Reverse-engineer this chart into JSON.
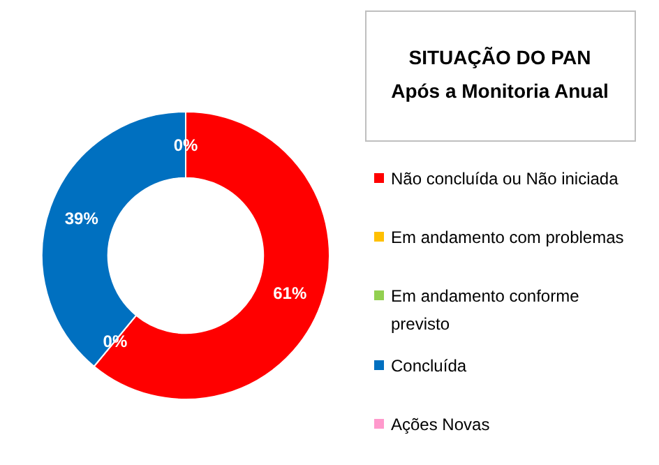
{
  "chart_data": {
    "type": "donut",
    "title": "SITUAÇÃO DO PAN",
    "subtitle": "Após a Monitoria Anual",
    "categories": [
      "Não concluída ou Não iniciada",
      "Em andamento com problemas",
      "Em andamento conforme previsto",
      "Concluída",
      "Ações Novas"
    ],
    "values": [
      61,
      0,
      0,
      39,
      0
    ],
    "colors": [
      "#ff0000",
      "#ffc000",
      "#92d050",
      "#0070c0",
      "#ff99cc"
    ],
    "value_labels": [
      "61%",
      "0%",
      null,
      "39%",
      "0%"
    ],
    "legend": "right"
  }
}
